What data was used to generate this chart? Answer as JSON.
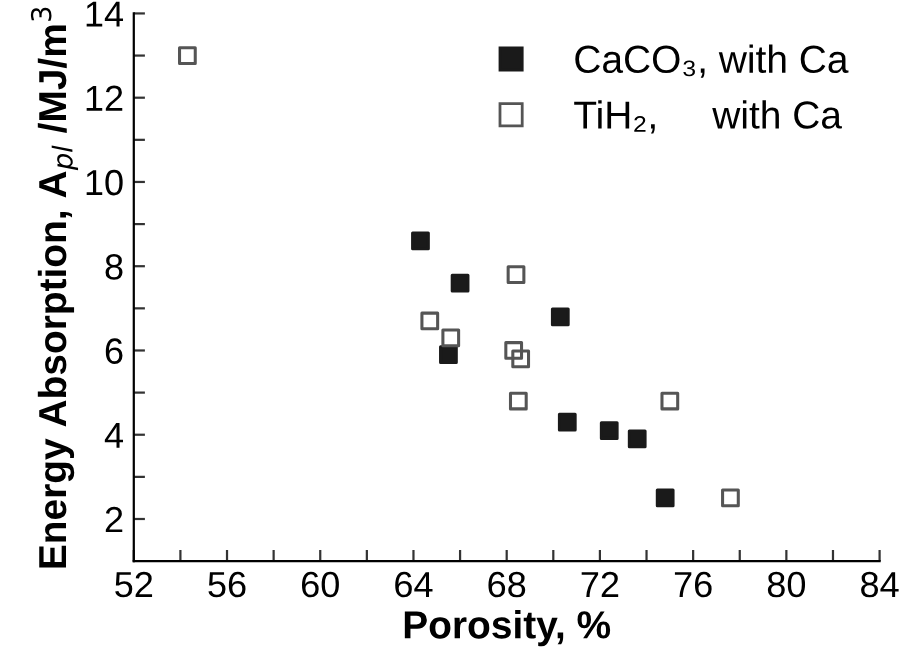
{
  "chart_data": {
    "type": "scatter",
    "xlabel": "Porosity, %",
    "ylabel": "Energy Absorption, A$_{pl}$ /MJ/m$^{3}$",
    "series": [
      {
        "name": "CaCO₃, with Ca",
        "color": "#1a1a1a",
        "marker": "square",
        "x": [
          64.3,
          66.0,
          65.5,
          70.3,
          70.6,
          72.4,
          73.6,
          74.8
        ],
        "values": [
          8.6,
          7.6,
          5.9,
          6.8,
          4.3,
          4.1,
          3.9,
          2.5
        ]
      },
      {
        "name": "TiH₂,     with Ca",
        "color": "#555555",
        "marker": "square",
        "x": [
          54.3,
          64.7,
          65.6,
          68.4,
          68.3,
          68.6,
          68.5,
          75.0,
          77.6
        ],
        "values": [
          13.0,
          6.7,
          6.3,
          7.8,
          6.0,
          5.8,
          4.8,
          4.8,
          2.5
        ]
      }
    ],
    "xlim": [
      52,
      84
    ],
    "ylim": [
      1,
      14
    ],
    "xticks": [
      52,
      {
        "value": 54,
        "label": null
      },
      56,
      {
        "value": 58,
        "label": null
      },
      60,
      {
        "value": 62,
        "label": null
      },
      64,
      {
        "value": 66,
        "label": null
      },
      68,
      {
        "value": 70,
        "label": null
      },
      72,
      {
        "value": 74,
        "label": null
      },
      76,
      {
        "value": 78,
        "label": null
      },
      80,
      {
        "value": 82,
        "label": null
      },
      84
    ],
    "yticks": [
      2,
      {
        "value": 3,
        "label": null
      },
      4,
      {
        "value": 5,
        "label": null
      },
      6,
      {
        "value": 7,
        "label": null
      },
      8,
      {
        "value": 9,
        "label": null
      },
      10,
      {
        "value": 11,
        "label": null
      },
      12,
      {
        "value": 13,
        "label": null
      },
      14
    ],
    "grid": false,
    "legend": "top right"
  }
}
